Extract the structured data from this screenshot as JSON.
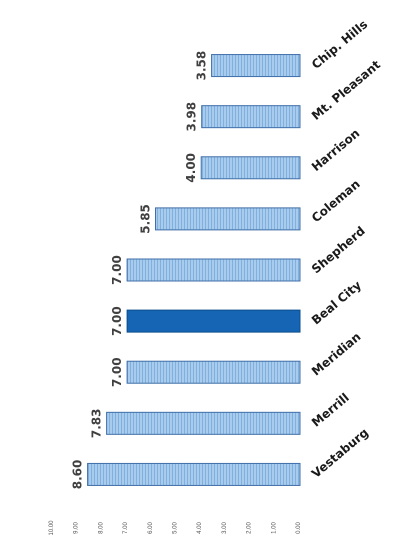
{
  "chart_data": {
    "type": "bar",
    "orientation": "horizontal",
    "title": "",
    "ylabel": "",
    "xlabel": "",
    "categories": [
      "Vestaburg",
      "Merrill",
      "Meridian",
      "Beal City",
      "Shepherd",
      "Coleman",
      "Harrison",
      "Mt. Pleasant",
      "Chip. Hills"
    ],
    "values": [
      8.6,
      7.83,
      7.0,
      7.0,
      7.0,
      5.85,
      4.0,
      3.98,
      3.58
    ],
    "value_labels": [
      "8.60",
      "7.83",
      "7.00",
      "7.00",
      "7.00",
      "5.85",
      "4.00",
      "3.98",
      "3.58"
    ],
    "xlim": [
      0,
      10
    ],
    "ticks": [
      "0.00",
      "1.00",
      "2.00",
      "3.00",
      "4.00",
      "5.00",
      "6.00",
      "7.00",
      "8.00",
      "9.00",
      "10.00"
    ],
    "highlight_category": "Beal City",
    "colors": {
      "bar": "#9cc3e6",
      "bar_edge": "#3f6fa8",
      "highlight": "#1565b4",
      "highlight_edge": "#0d4d8c"
    },
    "grid": false
  }
}
